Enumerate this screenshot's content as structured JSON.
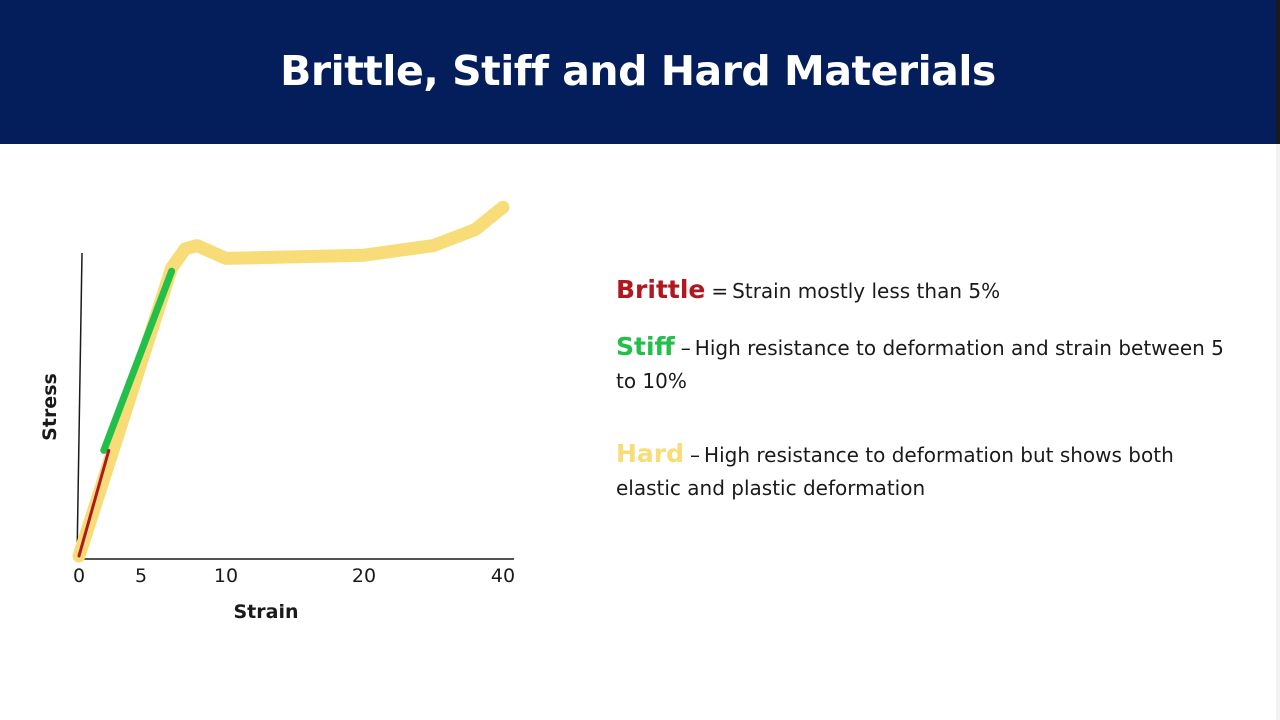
{
  "slide": {
    "title": "Brittle, Stiff and Hard Materials"
  },
  "definitions": [
    {
      "term": "Brittle",
      "separator": "=",
      "text": "Strain mostly less than 5%",
      "color": "#b01820"
    },
    {
      "term": "Stiff",
      "separator": "–",
      "text": "High resistance to deformation and strain between 5 to 10%",
      "color": "#22c04a"
    },
    {
      "term": "Hard",
      "separator": "–",
      "text": "High resistance to deformation but shows both elastic and plastic deformation",
      "color": "#f8dc78"
    }
  ],
  "chart_data": {
    "type": "line",
    "title": "",
    "xlabel": "Strain",
    "ylabel": "Stress",
    "x_ticks": [
      0,
      5,
      10,
      20,
      40
    ],
    "y_ticks": [],
    "grid": false,
    "legend": "none",
    "series": [
      {
        "name": "Hard",
        "color": "#f8dc78",
        "points": [
          [
            0,
            0
          ],
          [
            6.8,
            90
          ],
          [
            7.6,
            96
          ],
          [
            8.3,
            97
          ],
          [
            10,
            93
          ],
          [
            20,
            94
          ],
          [
            30,
            97
          ],
          [
            36,
            102
          ],
          [
            40,
            109
          ]
        ]
      },
      {
        "name": "Stiff",
        "color": "#22c04a",
        "points": [
          [
            2,
            33
          ],
          [
            6.8,
            89
          ]
        ]
      },
      {
        "name": "Brittle",
        "color": "#b01820",
        "points": [
          [
            0,
            0
          ],
          [
            2.4,
            33
          ]
        ]
      }
    ]
  }
}
